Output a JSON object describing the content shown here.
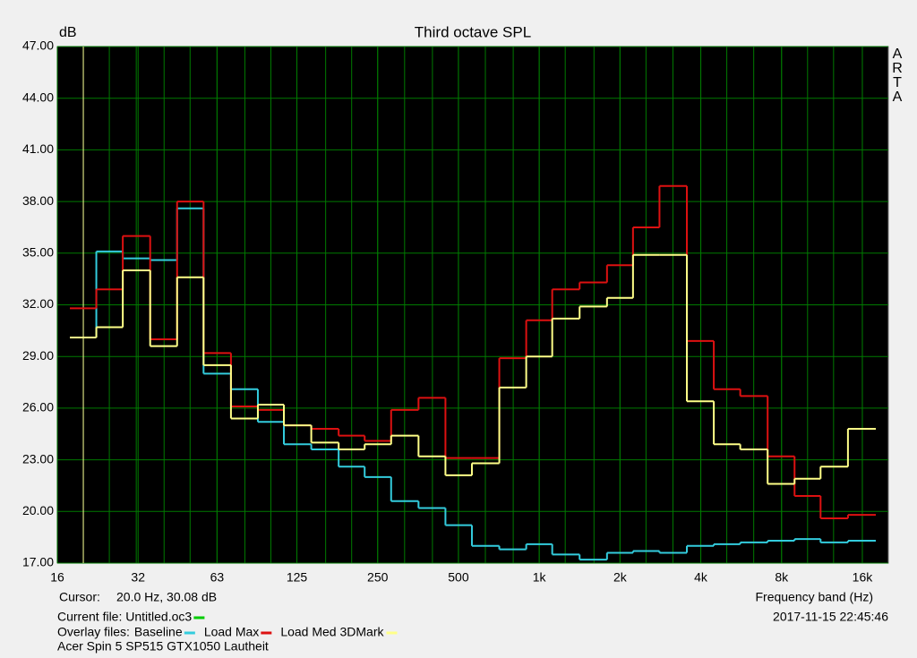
{
  "chart_data": {
    "type": "step",
    "title": "Third octave SPL",
    "y_label": "dB",
    "x_label": "Frequency band (Hz)",
    "brand": "ARTA",
    "log_x": true,
    "grid": true,
    "x": [
      20,
      25,
      31.5,
      40,
      50,
      63,
      80,
      100,
      125,
      160,
      200,
      250,
      315,
      400,
      500,
      630,
      800,
      1000,
      1250,
      1600,
      2000,
      2500,
      3150,
      4000,
      5000,
      6300,
      8000,
      10000,
      12500,
      16000
    ],
    "xlim": [
      16,
      20000
    ],
    "xticks": [
      16,
      32,
      63,
      125,
      250,
      500,
      {
        "value": 1000,
        "label": "1k"
      },
      {
        "value": 2000,
        "label": "2k"
      },
      {
        "value": 4000,
        "label": "4k"
      },
      {
        "value": 8000,
        "label": "8k"
      },
      {
        "value": 16000,
        "label": "16k"
      }
    ],
    "ylim": [
      17,
      47
    ],
    "yticks": [
      {
        "value": 17,
        "label": "17.00"
      },
      {
        "value": 20,
        "label": "20.00"
      },
      {
        "value": 23,
        "label": "23.00"
      },
      {
        "value": 26,
        "label": "26.00"
      },
      {
        "value": 29,
        "label": "29.00"
      },
      {
        "value": 32,
        "label": "32.00"
      },
      {
        "value": 35,
        "label": "35.00"
      },
      {
        "value": 38,
        "label": "38.00"
      },
      {
        "value": 41,
        "label": "41.00"
      },
      {
        "value": 44,
        "label": "44.00"
      },
      {
        "value": 47,
        "label": "47.00"
      }
    ],
    "cursor": {
      "label": "Cursor:",
      "text": "20.0 Hz, 30.08 dB",
      "x": 20,
      "color": "#ffff99"
    },
    "current_file": {
      "label": "Current file: Untitled.oc3",
      "color": "#00cc00"
    },
    "overlay_label": "Overlay files:",
    "timestamp": "2017-11-15  22:45:46",
    "caption": "Acer Spin 5 SP515 GTX1050 Lautheit",
    "series": [
      {
        "name": "Baseline",
        "color": "#33ccdd",
        "values": [
          30.1,
          35.1,
          34.7,
          34.6,
          37.6,
          28.0,
          27.1,
          25.2,
          23.9,
          23.6,
          22.6,
          22.0,
          20.6,
          20.2,
          19.2,
          18.0,
          17.8,
          18.1,
          17.5,
          17.2,
          17.6,
          17.7,
          17.6,
          18.0,
          18.1,
          18.2,
          18.3,
          18.4,
          18.2,
          18.3
        ]
      },
      {
        "name": "Load Max",
        "color": "#dd1111",
        "values": [
          31.8,
          32.9,
          36.0,
          30.0,
          38.0,
          29.2,
          26.1,
          25.9,
          25.0,
          24.8,
          24.4,
          24.1,
          25.9,
          26.6,
          23.1,
          23.1,
          28.9,
          31.1,
          32.9,
          33.3,
          34.3,
          36.5,
          38.9,
          29.9,
          27.1,
          26.7,
          23.2,
          20.9,
          19.6,
          19.8
        ]
      },
      {
        "name": "Load Med 3DMark",
        "color": "#ffff88",
        "values": [
          30.1,
          30.7,
          34.0,
          29.6,
          33.6,
          28.5,
          25.4,
          26.2,
          25.0,
          24.0,
          23.6,
          23.9,
          24.4,
          23.2,
          22.1,
          22.8,
          27.2,
          29.0,
          31.2,
          31.9,
          32.4,
          34.9,
          34.9,
          26.4,
          23.9,
          23.6,
          21.6,
          21.9,
          22.6,
          24.8
        ]
      }
    ]
  }
}
